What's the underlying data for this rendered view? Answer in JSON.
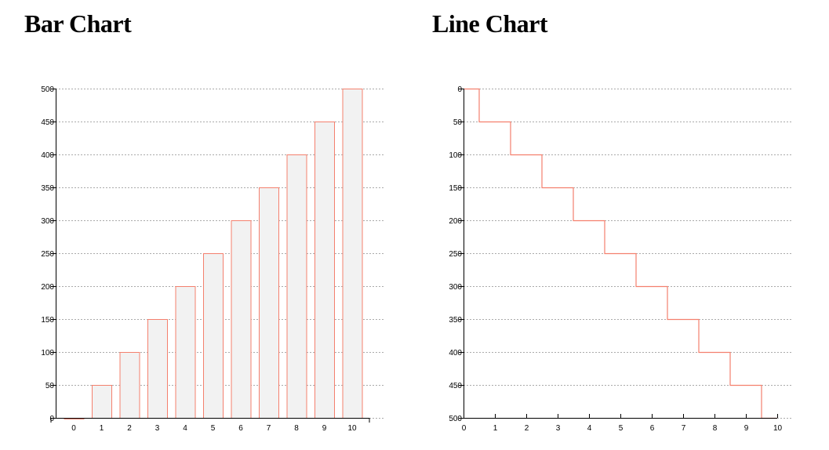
{
  "charts": {
    "bar_title": "Bar Chart",
    "line_title": "Line Chart"
  },
  "colors": {
    "mark_stroke": "#f4806e",
    "bar_fill": "#f2f2f2",
    "grid": "#aaaaaa",
    "axis": "#000000"
  },
  "chart_data": [
    {
      "type": "bar",
      "title": "Bar Chart",
      "categories": [
        "0",
        "1",
        "2",
        "3",
        "4",
        "5",
        "6",
        "7",
        "8",
        "9",
        "10"
      ],
      "values": [
        0,
        50,
        100,
        150,
        200,
        250,
        300,
        350,
        400,
        450,
        500
      ],
      "xlabel": "",
      "ylabel": "",
      "ylim": [
        0,
        500
      ],
      "yticks": [
        0,
        50,
        100,
        150,
        200,
        250,
        300,
        350,
        400,
        450,
        500
      ],
      "grid": true
    },
    {
      "type": "line",
      "title": "Line Chart",
      "x": [
        0.5,
        1.5,
        2.5,
        3.5,
        4.5,
        5.5,
        6.5,
        7.5,
        8.5,
        9.5
      ],
      "values": [
        0,
        50,
        100,
        150,
        200,
        250,
        300,
        350,
        400,
        450
      ],
      "step": true,
      "xlabel": "",
      "ylabel": "",
      "xlim": [
        0,
        10
      ],
      "ylim": [
        0,
        500
      ],
      "y_inverted": true,
      "xticks": [
        0,
        1,
        2,
        3,
        4,
        5,
        6,
        7,
        8,
        9,
        10
      ],
      "yticks": [
        0,
        50,
        100,
        150,
        200,
        250,
        300,
        350,
        400,
        450,
        500
      ],
      "grid": true
    }
  ]
}
